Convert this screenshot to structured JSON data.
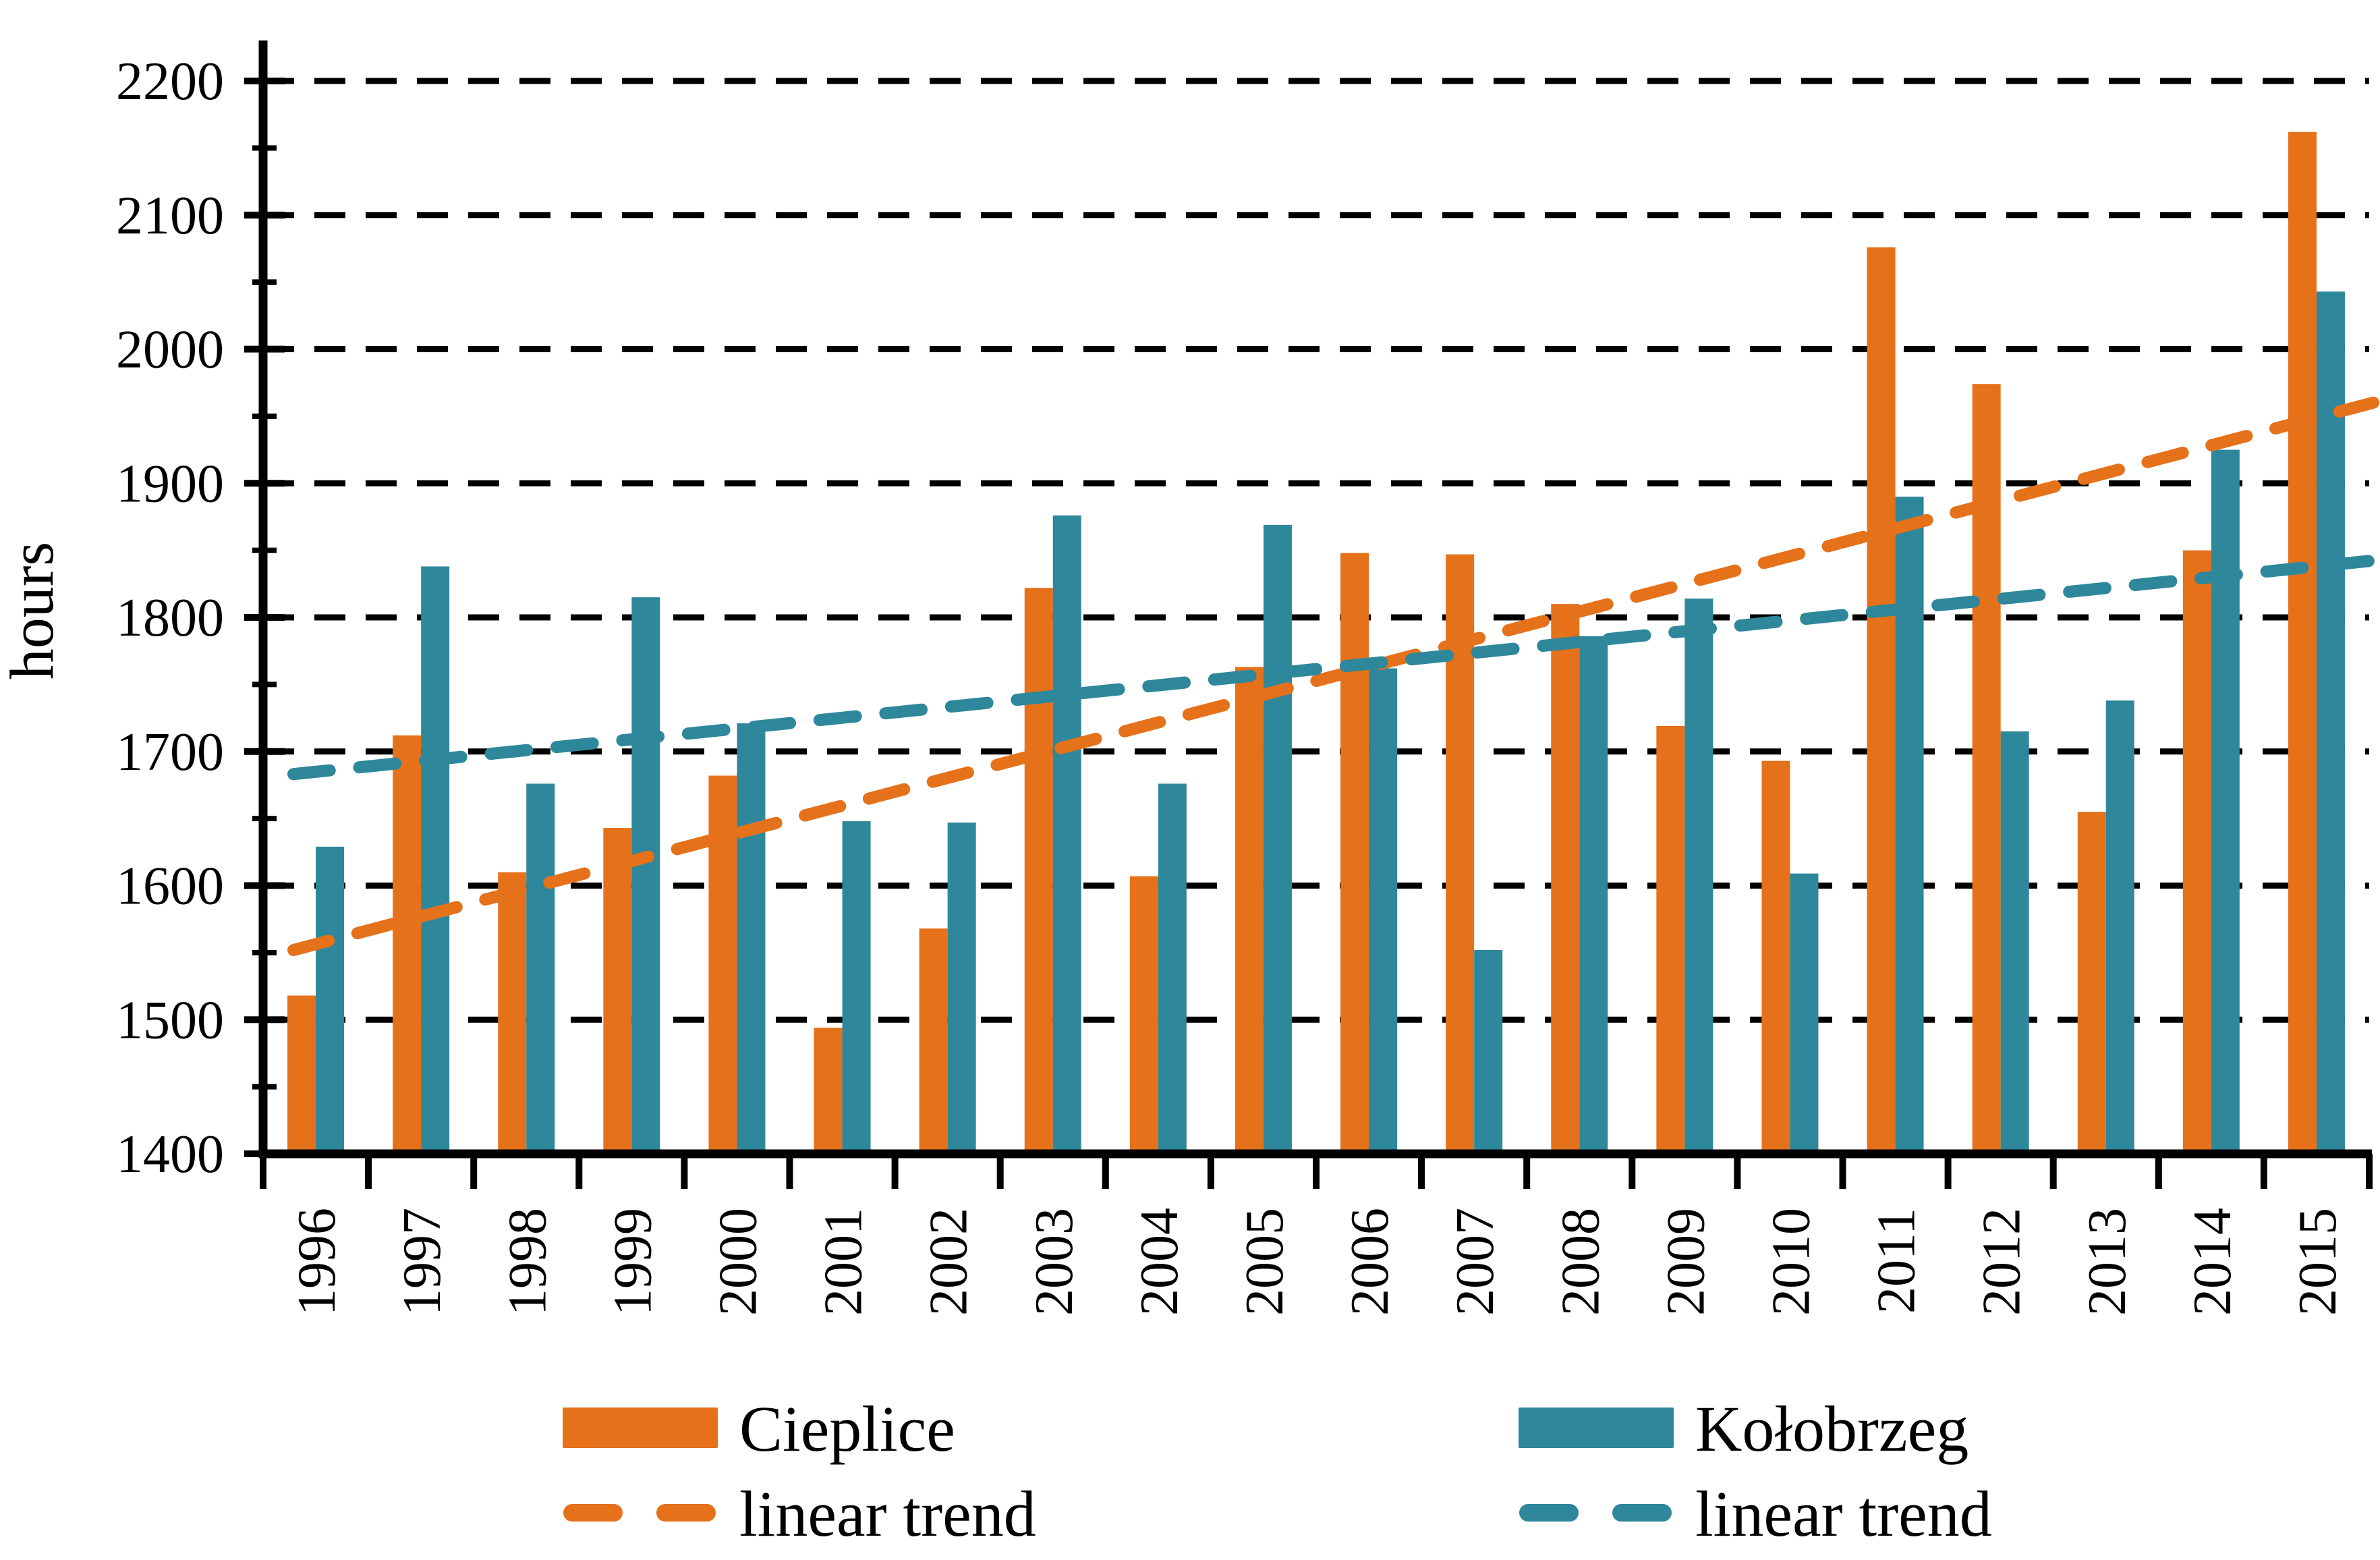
{
  "chart_data": {
    "type": "bar",
    "ylabel": "hours",
    "ylim": [
      1400,
      2200
    ],
    "ytick_interval": 100,
    "yticks": [
      "1400",
      "1500",
      "1600",
      "1700",
      "1800",
      "1900",
      "2000",
      "2100",
      "2200"
    ],
    "grid": "horizontal-dashed",
    "legend_position": "bottom",
    "trend_label": "linear trend",
    "categories": [
      "1996",
      "1997",
      "1998",
      "1999",
      "2000",
      "2001",
      "2002",
      "2003",
      "2004",
      "2005",
      "2006",
      "2007",
      "2008",
      "2009",
      "2010",
      "2011",
      "2012",
      "2013",
      "2014",
      "2015"
    ],
    "series": [
      {
        "name": "Cieplice",
        "color": "#E5711A",
        "values": [
          1518,
          1712,
          1610,
          1643,
          1682,
          1494,
          1568,
          1822,
          1607,
          1763,
          1848,
          1847,
          1810,
          1719,
          1693,
          2076,
          1974,
          1655,
          1850,
          2162
        ]
      },
      {
        "name": "Kołobrzeg",
        "color": "#2E879B",
        "values": [
          1629,
          1838,
          1676,
          1815,
          1721,
          1648,
          1647,
          1876,
          1676,
          1869,
          1762,
          1552,
          1786,
          1814,
          1609,
          1890,
          1715,
          1738,
          1925,
          2043
        ]
      }
    ],
    "trend_lines": [
      {
        "for": "Cieplice",
        "color": "#E5711A",
        "style": "dashed",
        "fit": "least-squares"
      },
      {
        "for": "Kołobrzeg",
        "color": "#2E879B",
        "style": "dashed",
        "fit": "least-squares"
      }
    ]
  }
}
